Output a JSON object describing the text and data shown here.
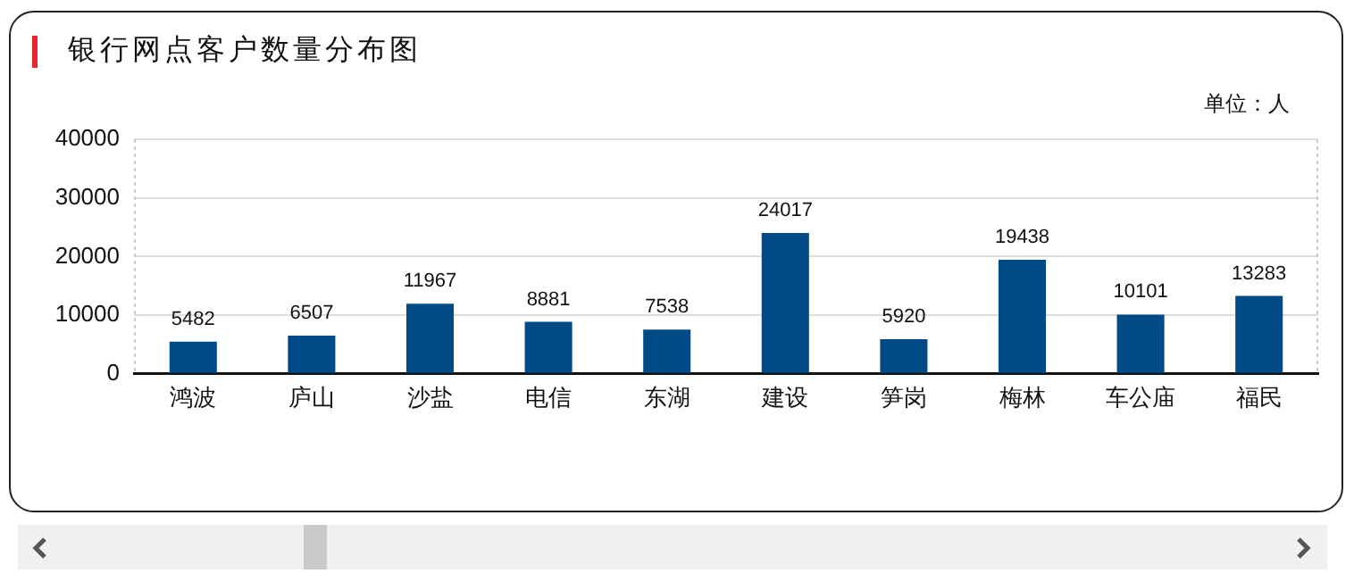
{
  "chart_data": {
    "type": "bar",
    "title": "银行网点客户数量分布图",
    "categories": [
      "鸿波",
      "庐山",
      "沙盐",
      "电信",
      "东湖",
      "建设",
      "笋岗",
      "梅林",
      "车公庙",
      "福民"
    ],
    "values": [
      5482,
      6507,
      11967,
      8881,
      7538,
      24017,
      5920,
      19438,
      10101,
      13283
    ],
    "color": "#004b87",
    "ylim": [
      0,
      40000
    ],
    "yticks": [
      0,
      10000,
      20000,
      30000,
      40000
    ],
    "grid": "y",
    "data_labels": true,
    "annotations": [
      "单位：人"
    ]
  }
}
